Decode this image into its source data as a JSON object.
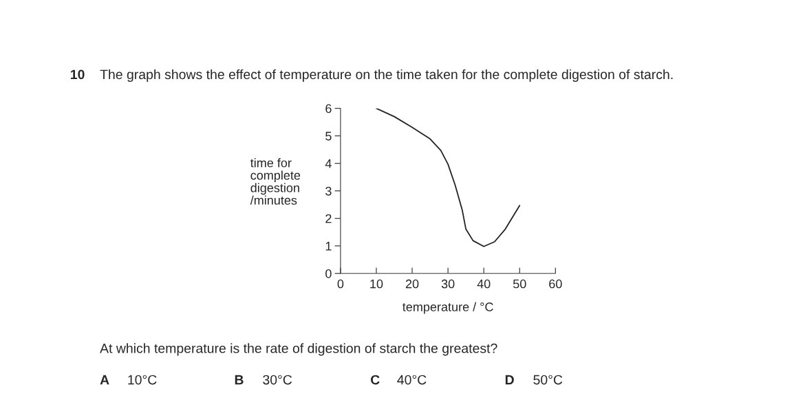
{
  "chart_data": {
    "type": "line",
    "ylabel": "time for\ncomplete\ndigestion\n/minutes",
    "xlabel": "temperature / °C",
    "x": [
      10,
      15,
      20,
      25,
      28,
      30,
      32,
      34,
      35,
      37,
      40,
      43,
      46,
      50
    ],
    "series": [
      {
        "color": "#222222",
        "values": [
          6.0,
          5.7,
          5.31,
          4.89,
          4.47,
          3.97,
          3.21,
          2.29,
          1.61,
          1.19,
          0.98,
          1.15,
          1.61,
          2.47
        ]
      }
    ],
    "xlim": [
      0,
      60
    ],
    "xticks": [
      0,
      10,
      20,
      30,
      40,
      50,
      60
    ],
    "ylim": [
      0,
      6
    ],
    "yticks": [
      0,
      1,
      2,
      3,
      4,
      5,
      6
    ],
    "grid": false,
    "legend": false,
    "marker": "none",
    "line_style": "solid",
    "annotations": [
      "10",
      "The graph shows the effect of temperature on the time taken for the complete digestion of starch.",
      "At which temperature is the rate of digestion of starch the greatest?",
      "A",
      "10°C",
      "B",
      "30°C",
      "C",
      "40°C",
      "D",
      "50°C"
    ]
  }
}
